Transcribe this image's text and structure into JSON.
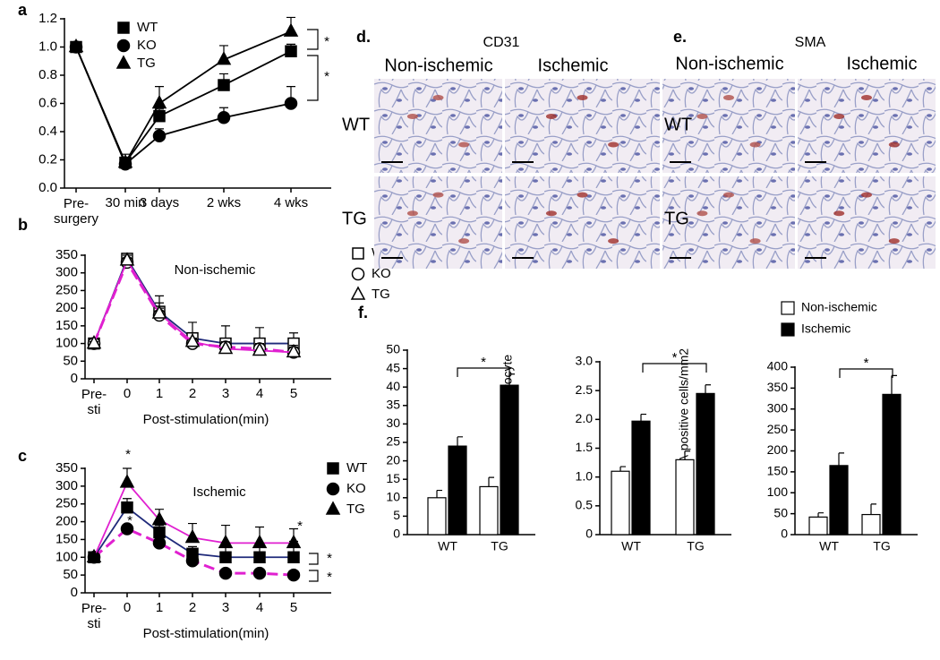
{
  "chart_data": [
    {
      "type": "line",
      "panel": "a",
      "categories": [
        "Pre-\nsurgery",
        "30 min",
        "3 days",
        "2 wks",
        "4 wks"
      ],
      "ylim": [
        0,
        1.2
      ],
      "yticks": [
        {
          "value": 0,
          "label": "0.0"
        },
        0.2,
        0.4,
        0.6,
        0.8,
        {
          "value": 1,
          "label": "1.0"
        },
        1.2
      ],
      "legend": "upper left",
      "series": [
        {
          "name": "WT",
          "color": "#000000",
          "marker": "square",
          "filled": true,
          "dash": false,
          "values": [
            1.0,
            0.18,
            0.51,
            0.73,
            0.97
          ],
          "errors": [
            0.03,
            0.03,
            0.05,
            0.08,
            0.05
          ]
        },
        {
          "name": "KO",
          "color": "#000000",
          "marker": "circle",
          "filled": true,
          "dash": false,
          "values": [
            1.0,
            0.17,
            0.37,
            0.5,
            0.6
          ],
          "errors": [
            0.03,
            0.03,
            0.05,
            0.07,
            0.12
          ]
        },
        {
          "name": "TG",
          "color": "#000000",
          "marker": "triangle",
          "filled": true,
          "dash": false,
          "values": [
            1.0,
            0.18,
            0.6,
            0.91,
            1.11
          ],
          "errors": [
            0.03,
            0.06,
            0.12,
            0.1,
            0.1
          ]
        }
      ],
      "annotations": [
        "*",
        "*"
      ]
    },
    {
      "type": "line",
      "panel": "b",
      "title": "Non-ischemic",
      "xlabel": "Post-stimulation(min)",
      "categories": [
        "Pre-\nsti",
        "0",
        "1",
        "2",
        "3",
        "4",
        "5"
      ],
      "ylim": [
        0,
        350
      ],
      "yticks": [
        0,
        50,
        100,
        150,
        200,
        250,
        300,
        350
      ],
      "legend": "upper right",
      "series": [
        {
          "name": "WT",
          "color": "#1f2a7a",
          "marker": "square",
          "filled": false,
          "dash": false,
          "values": [
            100,
            340,
            190,
            115,
            100,
            100,
            100
          ],
          "errors": [
            5,
            10,
            45,
            45,
            50,
            45,
            30
          ]
        },
        {
          "name": "KO",
          "color": "#e020d0",
          "marker": "circle",
          "filled": false,
          "dash": true,
          "values": [
            100,
            330,
            180,
            100,
            90,
            85,
            75
          ],
          "errors": [
            5,
            10,
            20,
            15,
            15,
            15,
            15
          ]
        },
        {
          "name": "TG",
          "color": "#e020d0",
          "marker": "triangle",
          "filled": false,
          "dash": false,
          "values": [
            100,
            335,
            185,
            105,
            85,
            80,
            75
          ],
          "errors": [
            5,
            15,
            30,
            25,
            20,
            20,
            20
          ]
        }
      ]
    },
    {
      "type": "line",
      "panel": "c",
      "title": "Ischemic",
      "xlabel": "Post-stimulation(min)",
      "categories": [
        "Pre-\nsti",
        "0",
        "1",
        "2",
        "3",
        "4",
        "5"
      ],
      "ylim": [
        0,
        350
      ],
      "yticks": [
        0,
        50,
        100,
        150,
        200,
        250,
        300,
        350
      ],
      "legend": "upper right",
      "series": [
        {
          "name": "WT",
          "color": "#1f2a7a",
          "marker": "square",
          "filled": true,
          "dash": false,
          "values": [
            100,
            240,
            170,
            110,
            100,
            100,
            100
          ],
          "errors": [
            5,
            25,
            20,
            20,
            40,
            40,
            45
          ]
        },
        {
          "name": "KO",
          "color": "#e020d0",
          "marker": "circle",
          "filled": true,
          "dash": true,
          "values": [
            100,
            180,
            140,
            90,
            55,
            55,
            50
          ],
          "errors": [
            5,
            10,
            10,
            10,
            10,
            10,
            10
          ]
        },
        {
          "name": "TG",
          "color": "#e020d0",
          "marker": "triangle",
          "filled": true,
          "dash": false,
          "values": [
            100,
            310,
            205,
            155,
            140,
            140,
            140
          ],
          "errors": [
            5,
            40,
            30,
            40,
            50,
            45,
            40
          ]
        }
      ],
      "annotations": [
        "*",
        "*",
        "*",
        "*",
        "*"
      ]
    },
    {
      "type": "bar",
      "panel": "f.",
      "ylabel": "Ratio CD31/Myocyte",
      "categories": [
        "WT",
        "TG"
      ],
      "ylim": [
        0,
        50
      ],
      "yticks": [
        0,
        5,
        10,
        15,
        20,
        25,
        30,
        35,
        40,
        45,
        50
      ],
      "series": [
        {
          "color": "#ffffff",
          "values": [
            10,
            13
          ],
          "errors": [
            2,
            2.5
          ]
        },
        {
          "color": "#000000",
          "values": [
            24,
            40.5
          ],
          "errors": [
            2.5,
            3
          ]
        }
      ],
      "annotations": [
        "*"
      ]
    },
    {
      "type": "bar",
      "ylabel": "α-SMA-positive cells/mm2",
      "categories": [
        "WT",
        "TG"
      ],
      "ylim": [
        0,
        3
      ],
      "yticks": [
        0,
        0.5,
        {
          "value": 1,
          "label": "1.0"
        },
        1.5,
        {
          "value": 2,
          "label": "2.0"
        },
        2.5,
        {
          "value": 3,
          "label": "3.0"
        }
      ],
      "series": [
        {
          "color": "#ffffff",
          "values": [
            1.1,
            1.3
          ],
          "errors": [
            0.08,
            0.15
          ]
        },
        {
          "color": "#000000",
          "values": [
            1.97,
            2.45
          ],
          "errors": [
            0.12,
            0.15
          ]
        }
      ],
      "annotations": [
        "*"
      ]
    },
    {
      "type": "bar",
      "categories": [
        "WT",
        "TG"
      ],
      "legend": "upper left",
      "ylim": [
        0,
        400
      ],
      "yticks": [
        0,
        50,
        100,
        150,
        200,
        250,
        300,
        350,
        400
      ],
      "series": [
        {
          "name": "Non-ischemic",
          "color": "#ffffff",
          "values": [
            42,
            48
          ],
          "errors": [
            10,
            25
          ]
        },
        {
          "name": "Ischemic",
          "color": "#000000",
          "values": [
            165,
            335
          ],
          "errors": [
            30,
            45
          ]
        }
      ],
      "annotations": [
        "*"
      ]
    }
  ],
  "micrographs": [
    {
      "panel": "d.",
      "title": "CD31",
      "columns": [
        "Non-ischemic",
        "Ischemic"
      ],
      "rows": [
        "WT",
        "TG"
      ]
    },
    {
      "panel": "e.",
      "title": "SMA",
      "columns": [
        "Non-ischemic",
        "Ischemic"
      ],
      "rows": [
        "WT",
        "TG"
      ]
    }
  ]
}
